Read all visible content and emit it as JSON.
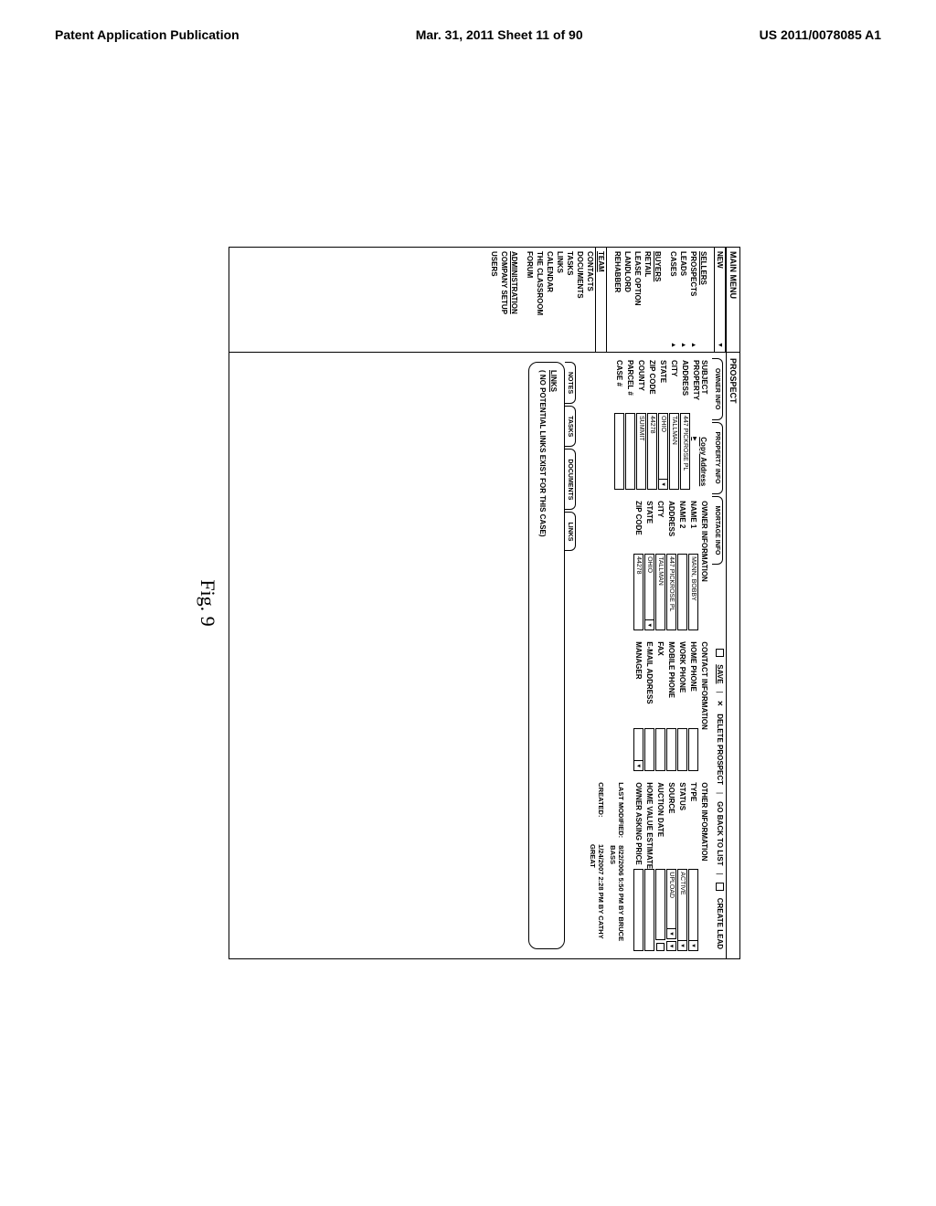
{
  "page_header": {
    "left": "Patent Application Publication",
    "center": "Mar. 31, 2011  Sheet 11 of 90",
    "right": "US 2011/0078085 A1"
  },
  "figure_label": "Fig. 9",
  "sidebar": {
    "title": "MAIN MENU",
    "new_label": "NEW",
    "groups": [
      {
        "items": [
          {
            "label": "SELLERS",
            "arrow": false,
            "u": true
          },
          {
            "label": "PROSPECTS",
            "arrow": true
          },
          {
            "label": "LEADS",
            "arrow": true
          },
          {
            "label": "CASES",
            "arrow": true
          }
        ]
      },
      {
        "items": [
          {
            "label": "BUYERS",
            "arrow": false,
            "u": true
          },
          {
            "label": "RETAIL",
            "arrow": false
          },
          {
            "label": "LEASE OPTION",
            "arrow": false
          },
          {
            "label": "LANDLORD",
            "arrow": false
          },
          {
            "label": "REHABBER",
            "arrow": false
          }
        ]
      },
      {
        "items": [
          {
            "label": "TEAM",
            "arrow": false,
            "u": true,
            "bordered": true
          },
          {
            "label": "CONTACTS",
            "arrow": false
          },
          {
            "label": "DOCUMENTS",
            "arrow": false
          },
          {
            "label": "TASKS",
            "arrow": false
          },
          {
            "label": "LINKS",
            "arrow": false
          },
          {
            "label": "CALENDAR",
            "arrow": false
          },
          {
            "label": "THE CLASSROOM",
            "arrow": false
          },
          {
            "label": "FORUM",
            "arrow": false
          }
        ]
      },
      {
        "items": [
          {
            "label": "ADMINISTRATION",
            "arrow": false,
            "u": true
          },
          {
            "label": "COMPANY SETUP",
            "arrow": false
          },
          {
            "label": "USERS",
            "arrow": false
          }
        ]
      }
    ]
  },
  "content": {
    "title": "PROSPECT",
    "tabs": [
      "OWNER INFO",
      "PROPERTY INFO",
      "MORTAGE INFO"
    ],
    "toolbar": {
      "save": "SAVE",
      "delete": "DELETE PROSPECT",
      "back": "GO BACK TO LIST",
      "create": "CREATE LEAD"
    },
    "subject_property": {
      "title": "SUBJECT PROPERTY",
      "copy": "Copy Address ▸",
      "fields": {
        "address_l": "ADDRESS",
        "address_v": "447 PICKROSE PL",
        "city_l": "CITY",
        "city_v": "TALLMAN",
        "state_l": "STATE",
        "state_v": "OHIO",
        "zip_l": "ZIP CODE",
        "zip_v": "44278",
        "county_l": "COUNTY",
        "county_v": "SUMMIT",
        "parcel_l": "PARCEL #",
        "parcel_v": "",
        "case_l": "CASE #",
        "case_v": ""
      }
    },
    "owner_info": {
      "title": "OWNER INFORMATION",
      "fields": {
        "name1_l": "NAME 1",
        "name1_v": "MANN, BOBBY",
        "name2_l": "NAME 2",
        "name2_v": "",
        "address_l": "ADDRESS",
        "address_v": "447 PICKROSE PL",
        "city_l": "CITY",
        "city_v": "TALLMAN",
        "state_l": "STATE",
        "state_v": "OHIO",
        "zip_l": "ZIP CODE",
        "zip_v": "44278"
      }
    },
    "contact_info": {
      "title": "CONTACT INFORMATION",
      "fields": {
        "home_l": "HOME PHONE",
        "work_l": "WORK PHONE",
        "mobile_l": "MOBILE PHONE",
        "fax_l": "FAX",
        "email_l": "E-MAIL ADDRESS",
        "manager_l": "MANAGER"
      }
    },
    "other_info": {
      "title": "OTHER INFORMATION",
      "fields": {
        "type_l": "TYPE",
        "status_l": "STATUS",
        "status_extra": "ACTIVE",
        "source_l": "SOURCE",
        "source_extra": "UPLOAD",
        "auction_l": "AUCTION DATE",
        "hve_l": "HOME VALUE ESTIMATE",
        "asking_l": "OWNER ASKING PRICE"
      },
      "last_mod_l": "LAST MODIFIED:",
      "last_mod_v": "8/22/2006 5:50 PM BY BRUCE BASS",
      "created_l": "CREATED:",
      "created_v": "1/24/2007 2:28 PM BY CATHY GREAT"
    },
    "subtabs": [
      "NOTES",
      "TASKS",
      "DOCUMENTS",
      "LINKS"
    ],
    "links_title": "LINKS",
    "links_empty": "( NO POTENTIAL LINKS EXIST FOR THIS CASE)"
  }
}
